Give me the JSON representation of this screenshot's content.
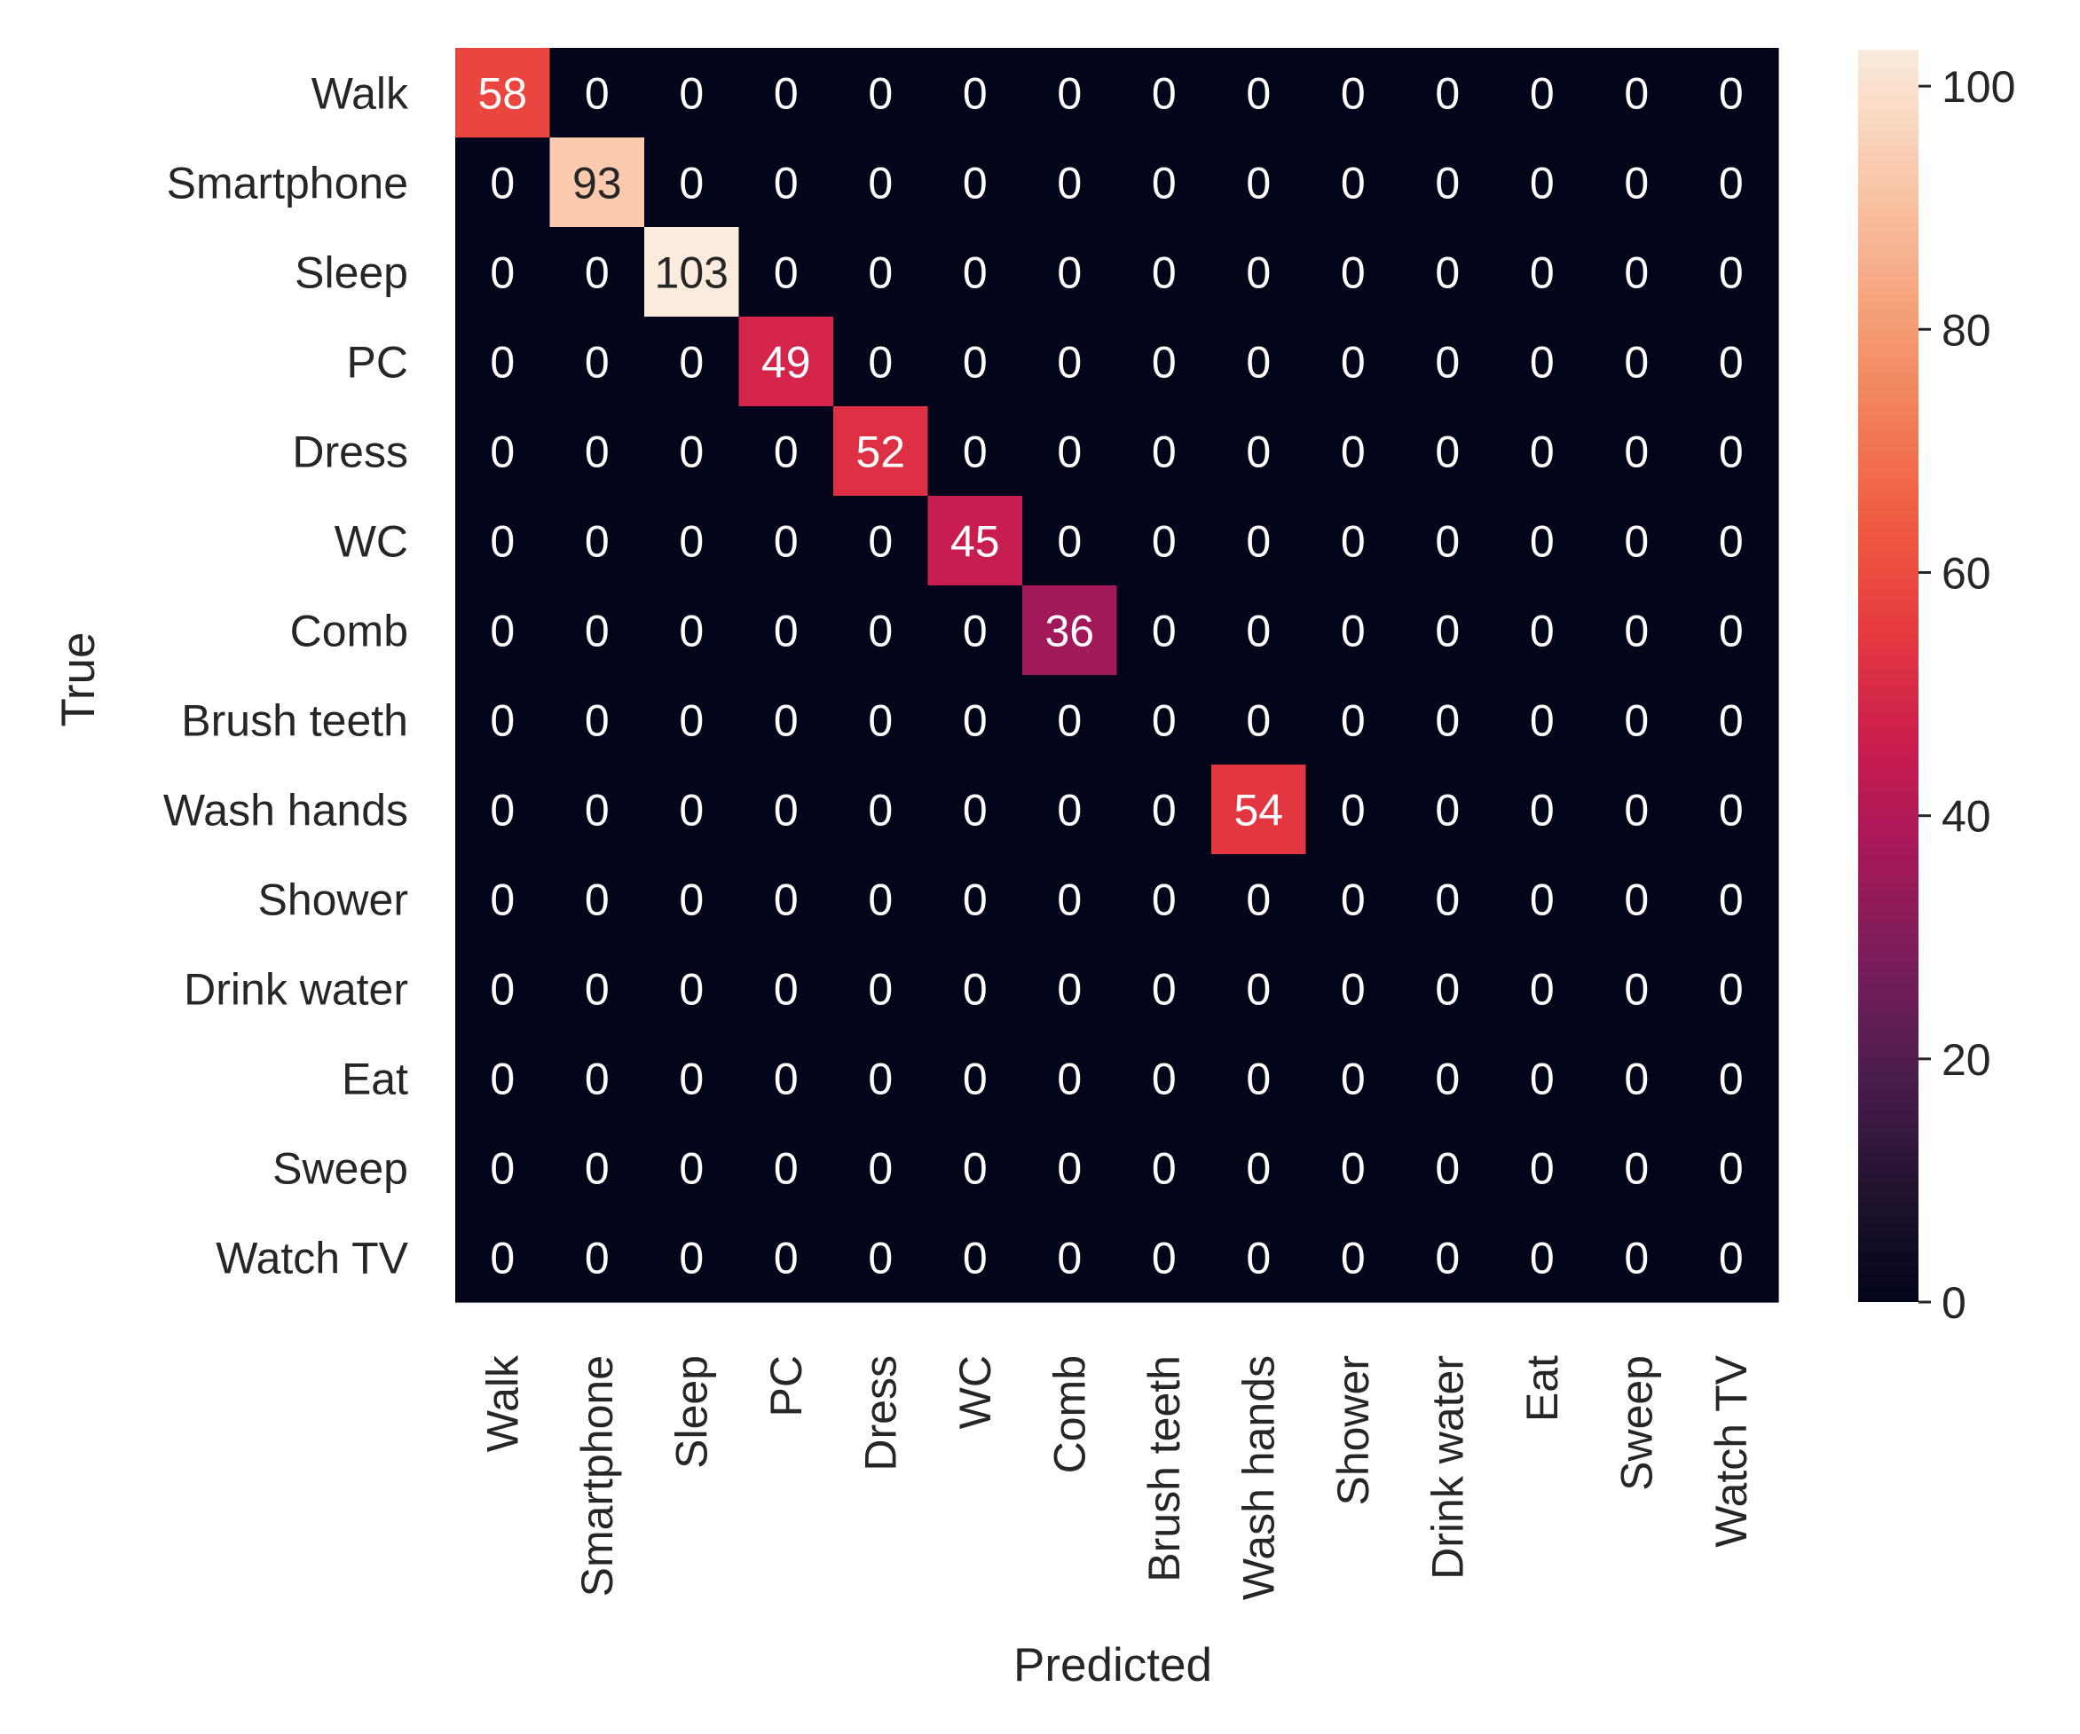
{
  "chart_data": {
    "type": "heatmap",
    "title": "",
    "xlabel": "Predicted",
    "ylabel": "True",
    "rows": [
      "Walk",
      "Smartphone",
      "Sleep",
      "PC",
      "Dress",
      "WC",
      "Comb",
      "Brush teeth",
      "Wash hands",
      "Shower",
      "Drink water",
      "Eat",
      "Sweep",
      "Watch TV"
    ],
    "columns": [
      "Walk",
      "Smartphone",
      "Sleep",
      "PC",
      "Dress",
      "WC",
      "Comb",
      "Brush teeth",
      "Wash hands",
      "Shower",
      "Drink water",
      "Eat",
      "Sweep",
      "Watch TV"
    ],
    "values": [
      [
        58,
        0,
        0,
        0,
        0,
        0,
        0,
        0,
        0,
        0,
        0,
        0,
        0,
        0
      ],
      [
        0,
        93,
        0,
        0,
        0,
        0,
        0,
        0,
        0,
        0,
        0,
        0,
        0,
        0
      ],
      [
        0,
        0,
        103,
        0,
        0,
        0,
        0,
        0,
        0,
        0,
        0,
        0,
        0,
        0
      ],
      [
        0,
        0,
        0,
        49,
        0,
        0,
        0,
        0,
        0,
        0,
        0,
        0,
        0,
        0
      ],
      [
        0,
        0,
        0,
        0,
        52,
        0,
        0,
        0,
        0,
        0,
        0,
        0,
        0,
        0
      ],
      [
        0,
        0,
        0,
        0,
        0,
        45,
        0,
        0,
        0,
        0,
        0,
        0,
        0,
        0
      ],
      [
        0,
        0,
        0,
        0,
        0,
        0,
        36,
        0,
        0,
        0,
        0,
        0,
        0,
        0
      ],
      [
        0,
        0,
        0,
        0,
        0,
        0,
        0,
        0,
        0,
        0,
        0,
        0,
        0,
        0
      ],
      [
        0,
        0,
        0,
        0,
        0,
        0,
        0,
        0,
        54,
        0,
        0,
        0,
        0,
        0
      ],
      [
        0,
        0,
        0,
        0,
        0,
        0,
        0,
        0,
        0,
        0,
        0,
        0,
        0,
        0
      ],
      [
        0,
        0,
        0,
        0,
        0,
        0,
        0,
        0,
        0,
        0,
        0,
        0,
        0,
        0
      ],
      [
        0,
        0,
        0,
        0,
        0,
        0,
        0,
        0,
        0,
        0,
        0,
        0,
        0,
        0
      ],
      [
        0,
        0,
        0,
        0,
        0,
        0,
        0,
        0,
        0,
        0,
        0,
        0,
        0,
        0
      ],
      [
        0,
        0,
        0,
        0,
        0,
        0,
        0,
        0,
        0,
        0,
        0,
        0,
        0,
        0
      ]
    ],
    "colorbar": {
      "range": [
        0,
        103
      ],
      "ticks": [
        0,
        20,
        40,
        60,
        80,
        100
      ]
    },
    "colormap": "rocket",
    "colormap_stops": [
      "#03051a",
      "#221331",
      "#4c1d4b",
      "#7a1d5a",
      "#a8185a",
      "#cf1e4d",
      "#e83e3e",
      "#f06043",
      "#f3875e",
      "#f6ab86",
      "#f9ccb0",
      "#faebdd"
    ]
  }
}
